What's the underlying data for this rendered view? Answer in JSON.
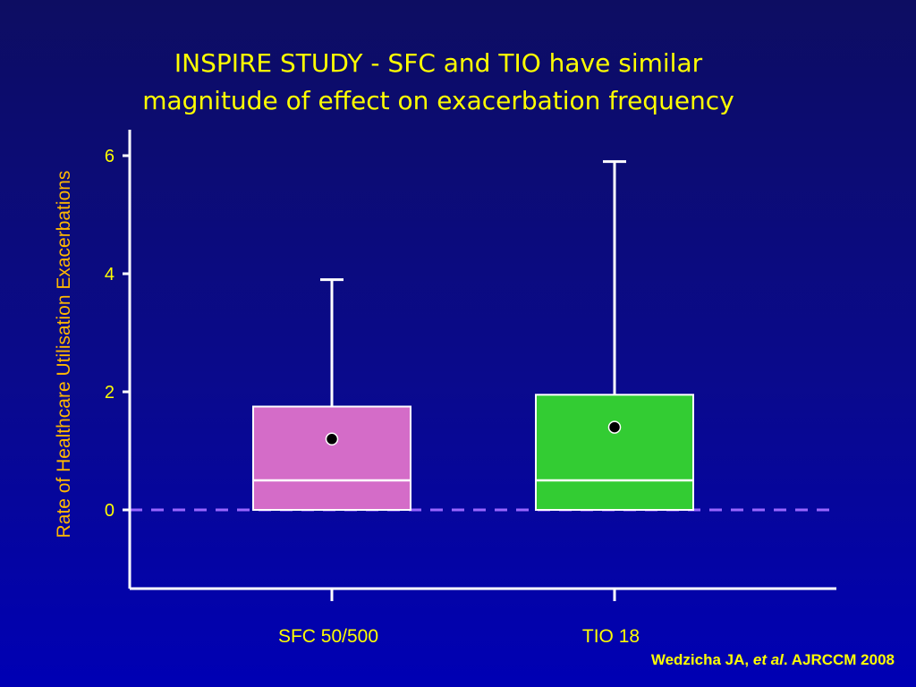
{
  "slide": {
    "title_line1": "INSPIRE STUDY - SFC and TIO have similar",
    "title_line2": "magnitude of effect on exacerbation frequency",
    "citation_authors": "Wedzicha JA,",
    "citation_etal": "et al",
    "citation_journal": ". AJRCCM 2008"
  },
  "colors": {
    "background": "#0a0a8c",
    "title": "#ffff00",
    "axis": "#ffffff",
    "reference_line": "#9966ff",
    "sfc_box": "#d46cc8",
    "tio_box": "#33cc33"
  },
  "chart_data": {
    "type": "boxplot",
    "title": "INSPIRE STUDY - SFC and TIO have similar magnitude of effect on exacerbation frequency",
    "ylabel": "Rate of Healthcare Utilisation Exacerbations",
    "xlabel": "",
    "ylim": [
      -1.35,
      6.4
    ],
    "yticks": [
      0,
      2,
      4,
      6
    ],
    "grid": false,
    "reference_line_y": 0,
    "categories": [
      "SFC 50/500",
      "TIO 18"
    ],
    "series": [
      {
        "category": "SFC 50/500",
        "min": 0,
        "q1": 0,
        "median": 0.5,
        "q3": 1.75,
        "whisker_high": 3.9,
        "mean": 1.2,
        "color": "#d46cc8"
      },
      {
        "category": "TIO 18",
        "min": 0,
        "q1": 0,
        "median": 0.5,
        "q3": 1.95,
        "whisker_high": 5.9,
        "mean": 1.4,
        "color": "#33cc33"
      }
    ]
  }
}
